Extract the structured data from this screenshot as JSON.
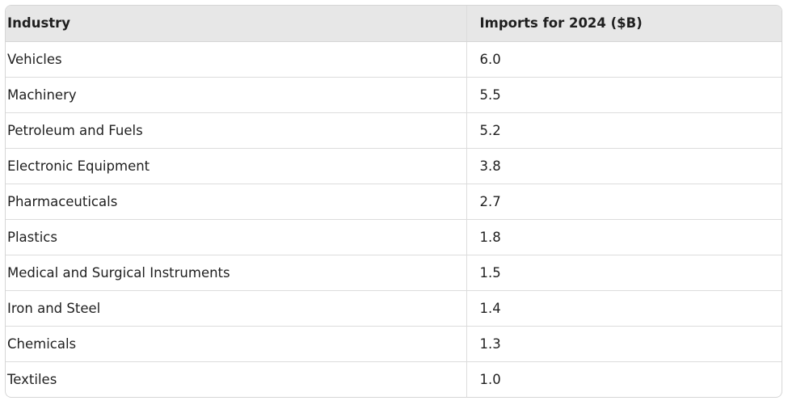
{
  "table": {
    "headers": [
      "Industry",
      "Imports for 2024 ($B)"
    ],
    "rows": [
      [
        "Vehicles",
        "6.0"
      ],
      [
        "Machinery",
        "5.5"
      ],
      [
        "Petroleum and Fuels",
        "5.2"
      ],
      [
        "Electronic Equipment",
        "3.8"
      ],
      [
        "Pharmaceuticals",
        "2.7"
      ],
      [
        "Plastics",
        "1.8"
      ],
      [
        "Medical and Surgical Instruments",
        "1.5"
      ],
      [
        "Iron and Steel",
        "1.4"
      ],
      [
        "Chemicals",
        "1.3"
      ],
      [
        "Textiles",
        "1.0"
      ]
    ]
  }
}
